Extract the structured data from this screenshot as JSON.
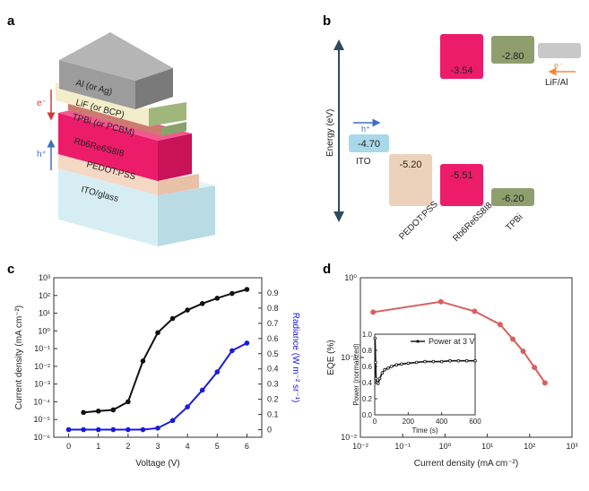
{
  "panels": {
    "a": "a",
    "b": "b",
    "c": "c",
    "d": "d"
  },
  "panel_a": {
    "layers": [
      "Al (or Ag)",
      "LiF (or BCP)",
      "TPBi (or PCBM)",
      "Rb6Re6S8I8",
      "PEDOT:PSS",
      "ITO/glass"
    ],
    "electron_label": "e⁻",
    "hole_label": "h⁺"
  },
  "panel_b": {
    "axis_label": "Energy (eV)",
    "ito_label": "ITO",
    "lif_label": "LiF/Al",
    "electron_label": "e⁻",
    "hole_label": "h⁺",
    "materials": [
      "PEDOT:PSS",
      "Rb6Re6S8I8",
      "TPBi"
    ],
    "levels": [
      "-4.70",
      "-5.20",
      "-3.54",
      "-5.51",
      "-2.80",
      "-6.20"
    ]
  },
  "chart_data": [
    {
      "type": "line",
      "panel": "c",
      "xlabel": "Voltage (V)",
      "ylabel": "Current density (mA cm⁻²)",
      "y2label": "Radiance (W m⁻² sr⁻¹)",
      "xlim": [
        -0.5,
        6.5
      ],
      "ylim_log": [
        1e-06,
        1000.0
      ],
      "y2lim": [
        -0.05,
        1.0
      ],
      "x_ticks": [
        "0",
        "1",
        "2",
        "3",
        "4",
        "5",
        "6"
      ],
      "y_ticks": [
        "10⁻⁶",
        "10⁻⁵",
        "10⁻⁴",
        "10⁻³",
        "10⁻²",
        "10⁻¹",
        "10⁰",
        "10¹",
        "10²",
        "10³"
      ],
      "y2_ticks": [
        "0",
        "0.1",
        "0.2",
        "0.3",
        "0.4",
        "0.5",
        "0.6",
        "0.7",
        "0.8",
        "0.9"
      ],
      "series": [
        {
          "axis": "left",
          "color": "#111111",
          "x": [
            0.5,
            1.0,
            1.5,
            2.0,
            2.5,
            3.0,
            3.5,
            4.0,
            4.5,
            5.0,
            5.5,
            6.0
          ],
          "y": [
            2.5e-05,
            3e-05,
            3.5e-05,
            0.0001,
            0.02,
            0.8,
            5,
            15,
            35,
            70,
            130,
            220
          ]
        },
        {
          "axis": "right",
          "color": "#1a1adb",
          "x": [
            0,
            0.5,
            1.0,
            1.5,
            2.0,
            2.5,
            3.0,
            3.5,
            4.0,
            4.5,
            5.0,
            5.5,
            6.0
          ],
          "y": [
            0,
            0,
            0,
            0,
            0,
            0,
            0.01,
            0.06,
            0.15,
            0.26,
            0.38,
            0.52,
            0.57
          ]
        }
      ]
    },
    {
      "type": "line",
      "panel": "d",
      "xlabel": "Current density (mA cm⁻²)",
      "ylabel": "EQE (%)",
      "xlim_log": [
        0.01,
        1000
      ],
      "ylim_log": [
        0.01,
        1
      ],
      "x_ticks": [
        "10⁻²",
        "10⁻¹",
        "10⁰",
        "10¹",
        "10²",
        "10³"
      ],
      "y_ticks": [
        "10⁻²",
        "10⁻¹",
        "10⁰"
      ],
      "series": [
        {
          "color": "#d95f5f",
          "x": [
            0.02,
            0.8,
            5,
            20,
            40,
            70,
            130,
            230
          ],
          "y": [
            0.37,
            0.5,
            0.38,
            0.26,
            0.17,
            0.12,
            0.075,
            0.048
          ]
        }
      ]
    },
    {
      "type": "line",
      "panel": "d-inset",
      "legend": "Power at 3 V",
      "xlabel": "Time (s)",
      "ylabel": "Power (normalized)",
      "xlim": [
        0,
        600
      ],
      "ylim": [
        0,
        1.0
      ],
      "x_ticks": [
        "0",
        "200",
        "400",
        "600"
      ],
      "y_ticks": [
        "0.0",
        "0.2",
        "0.4",
        "0.6",
        "0.8",
        "1.0"
      ],
      "series": [
        {
          "color": "#111111",
          "x": [
            2,
            5,
            8,
            12,
            20,
            30,
            45,
            60,
            80,
            100,
            130,
            160,
            200,
            250,
            300,
            350,
            400,
            450,
            500,
            550,
            600
          ],
          "y": [
            0.95,
            0.65,
            0.45,
            0.4,
            0.39,
            0.45,
            0.52,
            0.56,
            0.58,
            0.6,
            0.62,
            0.63,
            0.64,
            0.65,
            0.66,
            0.66,
            0.66,
            0.67,
            0.67,
            0.67,
            0.67
          ]
        }
      ]
    }
  ]
}
